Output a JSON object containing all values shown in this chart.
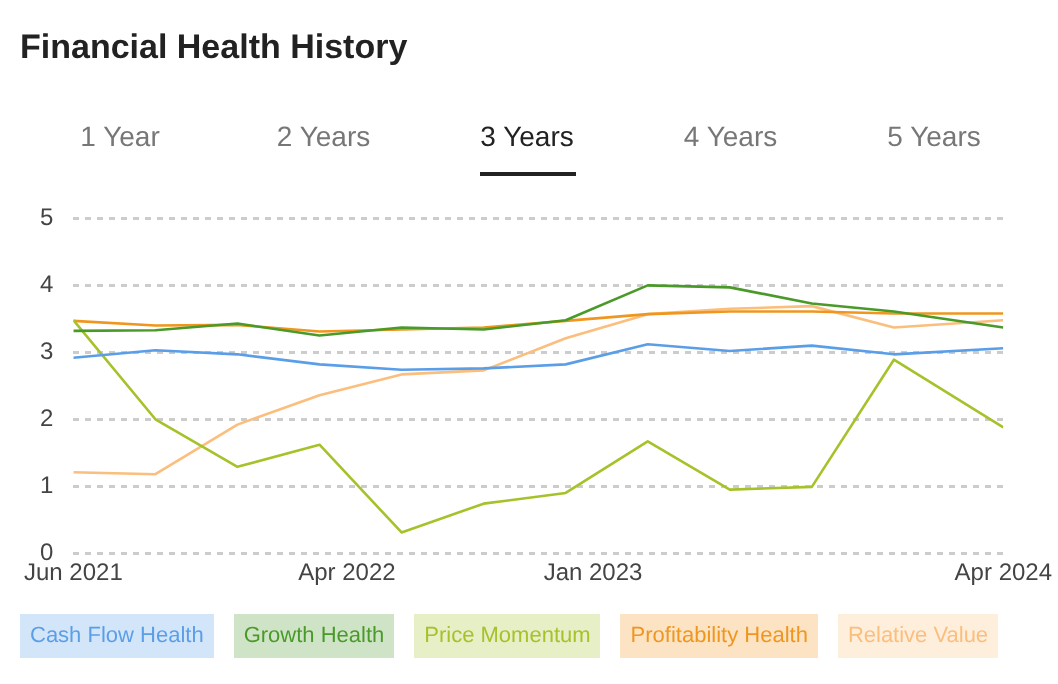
{
  "chart_data": {
    "type": "line",
    "title": "Financial Health History",
    "annotations": [
      "1 Year",
      "2 Years",
      "3 Years",
      "4 Years",
      "5 Years"
    ],
    "x": [
      "2021-06",
      "2021-09",
      "2021-12",
      "2022-03",
      "2022-06",
      "2022-09",
      "2022-12",
      "2023-03",
      "2023-06",
      "2023-09",
      "2023-12",
      "2024-04"
    ],
    "series": [
      {
        "name": "Cash Flow Health",
        "color": "#5b9ee8",
        "values": [
          2.92,
          3.03,
          2.97,
          2.82,
          2.74,
          2.76,
          2.82,
          3.12,
          3.02,
          3.1,
          2.97,
          3.06
        ]
      },
      {
        "name": "Growth Health",
        "color": "#4a9a2a",
        "values": [
          3.32,
          3.33,
          3.43,
          3.25,
          3.37,
          3.34,
          3.48,
          4.0,
          3.97,
          3.73,
          3.61,
          3.37
        ]
      },
      {
        "name": "Price Momentum",
        "color": "#a5c22a",
        "values": [
          3.48,
          2.0,
          1.29,
          1.62,
          0.31,
          0.74,
          0.9,
          1.67,
          0.95,
          0.99,
          2.89,
          1.88
        ]
      },
      {
        "name": "Profitability Health",
        "color": "#f0961e",
        "values": [
          3.47,
          3.4,
          3.41,
          3.31,
          3.34,
          3.37,
          3.47,
          3.57,
          3.61,
          3.61,
          3.58,
          3.58
        ]
      },
      {
        "name": "Relative Value",
        "color": "#fbbe7c",
        "values": [
          1.21,
          1.18,
          1.92,
          2.36,
          2.67,
          2.73,
          3.21,
          3.57,
          3.65,
          3.69,
          3.37,
          3.48
        ]
      }
    ],
    "xlim": [
      "2021-06",
      "2024-04"
    ],
    "xticks": [
      {
        "value": "2021-06",
        "label": "Jun 2021"
      },
      {
        "value": "2022-04",
        "label": "Apr 2022"
      },
      {
        "value": "2023-01",
        "label": "Jan 2023"
      },
      {
        "value": "2024-04",
        "label": "Apr 2024"
      }
    ],
    "ylim": [
      0,
      5
    ],
    "yticks": [
      0,
      1,
      2,
      3,
      4,
      5
    ],
    "grid": "y",
    "legend": "bottom",
    "marker": "none",
    "line_style": "solid"
  }
}
